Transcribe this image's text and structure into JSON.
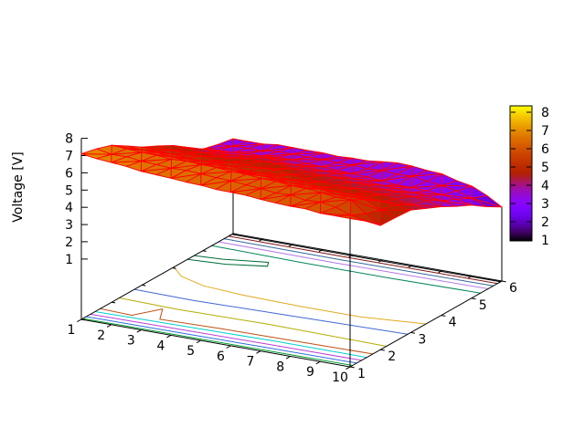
{
  "chart_data": {
    "type": "surface",
    "title": "",
    "zlabel": "Voltage [V]",
    "x_ticks": [
      "1",
      "2",
      "3",
      "4",
      "5",
      "6",
      "7",
      "8",
      "9",
      "10"
    ],
    "y_ticks": [
      "1",
      "2",
      "3",
      "4",
      "5",
      "6"
    ],
    "z_ticks": [
      "1",
      "2",
      "3",
      "4",
      "5",
      "6",
      "7",
      "8"
    ],
    "colorbar_ticks": [
      "1",
      "2",
      "3",
      "4",
      "5",
      "6",
      "7",
      "8"
    ],
    "x_range": [
      1,
      10
    ],
    "y_range": [
      1,
      6
    ],
    "z_range": [
      1,
      8
    ],
    "grid_x": [
      1,
      2,
      3,
      4,
      5,
      6,
      7,
      8,
      9,
      10
    ],
    "grid_y": [
      1,
      2,
      3,
      4,
      5,
      6
    ],
    "z_values": [
      [
        7.1,
        6.9,
        6.7,
        6.6,
        6.5,
        6.4,
        6.3,
        6.2,
        6.1,
        6.1
      ],
      [
        6.6,
        6.5,
        6.4,
        6.4,
        6.3,
        6.2,
        6.1,
        6.0,
        5.9,
        4.7
      ],
      [
        5.5,
        5.4,
        5.3,
        5.3,
        5.2,
        5.1,
        5.0,
        4.9,
        4.8,
        4.6
      ],
      [
        4.6,
        4.5,
        4.5,
        4.6,
        4.5,
        4.4,
        4.3,
        4.2,
        4.1,
        3.8
      ],
      [
        3.4,
        3.5,
        3.6,
        3.7,
        3.6,
        3.5,
        3.4,
        3.3,
        3.2,
        2.9
      ],
      [
        3.0,
        3.0,
        3.1,
        3.1,
        3.1,
        3.2,
        3.25,
        3.1,
        2.7,
        1.8
      ]
    ],
    "mesh_color": "#ff0000",
    "axis_color": "#000000",
    "palette": {
      "name": "gnuplot-pm3d-rgbformulae-7-5-15",
      "cb_min": 0.95,
      "cb_max": 8.35,
      "stops": [
        "#000000",
        "#5a00b4",
        "#8004ff",
        "#9c0db4",
        "#b42000",
        "#ca3e00",
        "#dd6c00",
        "#efab00",
        "#ffff00"
      ]
    },
    "contours": [
      {
        "color": "#009e2f",
        "points": [
          [
            1,
            1.05
          ],
          [
            4,
            1.06
          ],
          [
            7,
            1.07
          ],
          [
            10,
            1.08
          ]
        ]
      },
      {
        "color": "#2e6be0",
        "points": [
          [
            1,
            1.16
          ],
          [
            4,
            1.18
          ],
          [
            7,
            1.2
          ],
          [
            10,
            1.22
          ]
        ]
      },
      {
        "color": "#bb3fd6",
        "points": [
          [
            1,
            1.3
          ],
          [
            4,
            1.33
          ],
          [
            7,
            1.36
          ],
          [
            10,
            1.38
          ]
        ]
      },
      {
        "color": "#00cfcf",
        "points": [
          [
            1,
            1.45
          ],
          [
            4,
            1.5
          ],
          [
            7,
            1.55
          ],
          [
            10,
            1.55
          ]
        ]
      },
      {
        "color": "#bf5014",
        "points": [
          [
            1,
            1.62
          ],
          [
            2.1,
            1.58
          ],
          [
            2.6,
            2.1
          ],
          [
            3.0,
            1.62
          ],
          [
            5,
            1.68
          ],
          [
            8,
            1.72
          ],
          [
            10,
            1.75
          ]
        ]
      },
      {
        "color": "#b2ae00",
        "points": [
          [
            1,
            2.25
          ],
          [
            3,
            2.2
          ],
          [
            6,
            2.25
          ],
          [
            10,
            2.2
          ]
        ]
      },
      {
        "color": "#3f68d4",
        "points": [
          [
            1,
            2.75
          ],
          [
            3,
            2.72
          ],
          [
            6,
            2.8
          ],
          [
            10,
            2.9
          ]
        ]
      },
      {
        "color": "#e0ab1f",
        "points": [
          [
            1,
            4.05
          ],
          [
            1.6,
            3.7
          ],
          [
            2.6,
            3.45
          ],
          [
            4,
            3.35
          ],
          [
            6,
            3.3
          ],
          [
            8,
            3.3
          ],
          [
            10,
            3.5
          ]
        ]
      },
      {
        "color": "#006b38",
        "points": [
          [
            1,
            4.72
          ],
          [
            1.9,
            4.78
          ],
          [
            3.2,
            5.0
          ],
          [
            3.35,
            4.82
          ],
          [
            2.2,
            4.58
          ],
          [
            1,
            4.5
          ]
        ]
      },
      {
        "color": "#00855c",
        "points": [
          [
            1,
            5.3
          ],
          [
            4,
            5.25
          ],
          [
            7,
            5.25
          ],
          [
            10,
            5.3
          ]
        ]
      },
      {
        "color": "#b279e8",
        "points": [
          [
            1,
            5.52
          ],
          [
            5,
            5.5
          ],
          [
            10,
            5.55
          ]
        ]
      },
      {
        "color": "#2f6699",
        "points": [
          [
            1,
            5.7
          ],
          [
            5,
            5.68
          ],
          [
            10,
            5.72
          ]
        ]
      },
      {
        "color": "#801313",
        "points": [
          [
            1,
            5.85
          ],
          [
            5,
            5.84
          ],
          [
            10,
            5.86
          ]
        ]
      },
      {
        "color": "#000000",
        "points": [
          [
            1,
            5.96
          ],
          [
            5,
            5.95
          ],
          [
            10,
            5.96
          ]
        ]
      }
    ],
    "colorbar": {
      "tick_values": [
        1,
        2,
        3,
        4,
        5,
        6,
        7,
        8
      ]
    },
    "legend_position": "colorbar-right",
    "grid": "off"
  }
}
